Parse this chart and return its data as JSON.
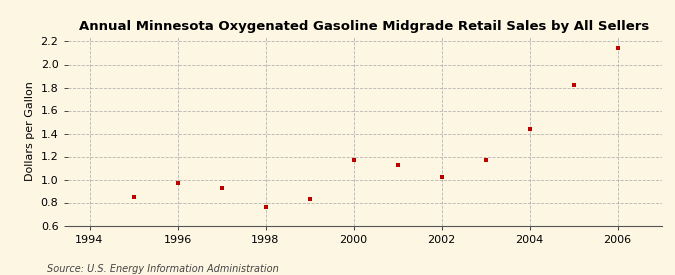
{
  "title": "Annual Minnesota Oxygenated Gasoline Midgrade Retail Sales by All Sellers",
  "ylabel": "Dollars per Gallon",
  "source": "Source: U.S. Energy Information Administration",
  "years": [
    1995,
    1996,
    1997,
    1998,
    1999,
    2000,
    2001,
    2002,
    2003,
    2004,
    2005,
    2006
  ],
  "values": [
    0.85,
    0.97,
    0.93,
    0.76,
    0.83,
    1.17,
    1.13,
    1.02,
    1.17,
    1.44,
    1.82,
    2.14
  ],
  "xlim": [
    1993.5,
    2007.0
  ],
  "ylim": [
    0.6,
    2.25
  ],
  "yticks": [
    0.6,
    0.8,
    1.0,
    1.2,
    1.4,
    1.6,
    1.8,
    2.0,
    2.2
  ],
  "xticks": [
    1994,
    1996,
    1998,
    2000,
    2002,
    2004,
    2006
  ],
  "marker_color": "#bb0000",
  "marker": "s",
  "marker_size": 3.5,
  "bg_color": "#fdf6e3",
  "grid_color": "#999999",
  "title_fontsize": 9.5,
  "label_fontsize": 8,
  "tick_fontsize": 8,
  "source_fontsize": 7
}
